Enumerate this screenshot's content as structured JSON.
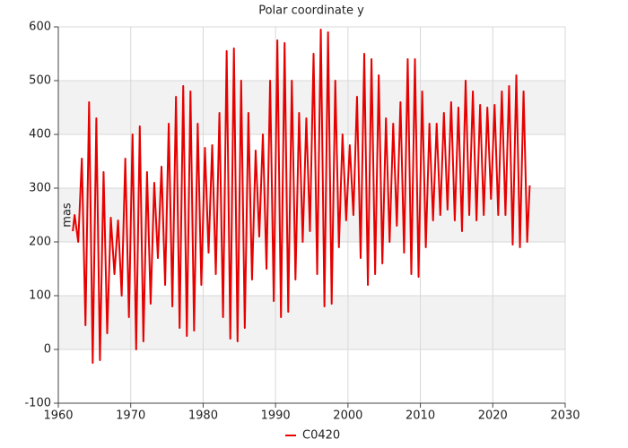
{
  "chart_data": {
    "type": "line",
    "title": "Polar coordinate y",
    "y_label": "mas",
    "xlim": [
      1960,
      2030
    ],
    "xticks": [
      1960,
      1970,
      1980,
      1990,
      2000,
      2010,
      2020,
      2030
    ],
    "ylim": [
      -100,
      600
    ],
    "yticks": [
      -100,
      0,
      100,
      200,
      300,
      400,
      500,
      600
    ],
    "grid": true,
    "band_color": "#f2f2f2",
    "legend": "bottom",
    "x": [
      1962,
      1962.25,
      1962.75,
      1963.25,
      1963.75,
      1964.25,
      1964.75,
      1965.25,
      1965.75,
      1966.25,
      1966.75,
      1967.25,
      1967.75,
      1968.25,
      1968.75,
      1969.25,
      1969.75,
      1970.25,
      1970.75,
      1971.25,
      1971.75,
      1972.25,
      1972.75,
      1973.25,
      1973.75,
      1974.25,
      1974.75,
      1975.25,
      1975.75,
      1976.25,
      1976.75,
      1977.25,
      1977.75,
      1978.25,
      1978.75,
      1979.25,
      1979.75,
      1980.25,
      1980.75,
      1981.25,
      1981.75,
      1982.25,
      1982.75,
      1983.25,
      1983.75,
      1984.25,
      1984.75,
      1985.25,
      1985.75,
      1986.25,
      1986.75,
      1987.25,
      1987.75,
      1988.25,
      1988.75,
      1989.25,
      1989.75,
      1990.25,
      1990.75,
      1991.25,
      1991.75,
      1992.25,
      1992.75,
      1993.25,
      1993.75,
      1994.25,
      1994.75,
      1995.25,
      1995.75,
      1996.25,
      1996.75,
      1997.25,
      1997.75,
      1998.25,
      1998.75,
      1999.25,
      1999.75,
      2000.25,
      2000.75,
      2001.25,
      2001.75,
      2002.25,
      2002.75,
      2003.25,
      2003.75,
      2004.25,
      2004.75,
      2005.25,
      2005.75,
      2006.25,
      2006.75,
      2007.25,
      2007.75,
      2008.25,
      2008.75,
      2009.25,
      2009.75,
      2010.25,
      2010.75,
      2011.25,
      2011.75,
      2012.25,
      2012.75,
      2013.25,
      2013.75,
      2014.25,
      2014.75,
      2015.25,
      2015.75,
      2016.25,
      2016.75,
      2017.25,
      2017.75,
      2018.25,
      2018.75,
      2019.25,
      2019.75,
      2020.25,
      2020.75,
      2021.25,
      2021.75,
      2022.25,
      2022.75,
      2023.25,
      2023.75,
      2024.25,
      2024.75,
      2025.1
    ],
    "series": [
      {
        "name": "C0420",
        "color": "#e60000",
        "values": [
          220,
          250,
          200,
          355,
          45,
          460,
          -25,
          430,
          -20,
          330,
          30,
          245,
          140,
          240,
          100,
          355,
          60,
          400,
          0,
          415,
          15,
          330,
          85,
          310,
          170,
          340,
          120,
          420,
          80,
          470,
          40,
          490,
          25,
          480,
          35,
          420,
          120,
          375,
          180,
          380,
          140,
          440,
          60,
          555,
          20,
          560,
          15,
          500,
          40,
          440,
          130,
          370,
          210,
          400,
          150,
          500,
          90,
          575,
          60,
          570,
          70,
          500,
          130,
          440,
          200,
          430,
          220,
          550,
          140,
          595,
          80,
          590,
          85,
          500,
          190,
          400,
          240,
          380,
          250,
          470,
          170,
          550,
          120,
          540,
          140,
          510,
          160,
          430,
          200,
          420,
          230,
          460,
          180,
          540,
          140,
          540,
          135,
          480,
          190,
          420,
          240,
          420,
          250,
          440,
          260,
          460,
          240,
          450,
          220,
          500,
          250,
          480,
          240,
          455,
          250,
          450,
          280,
          455,
          250,
          480,
          250,
          490,
          195,
          510,
          190,
          480,
          200,
          305
        ]
      }
    ]
  }
}
